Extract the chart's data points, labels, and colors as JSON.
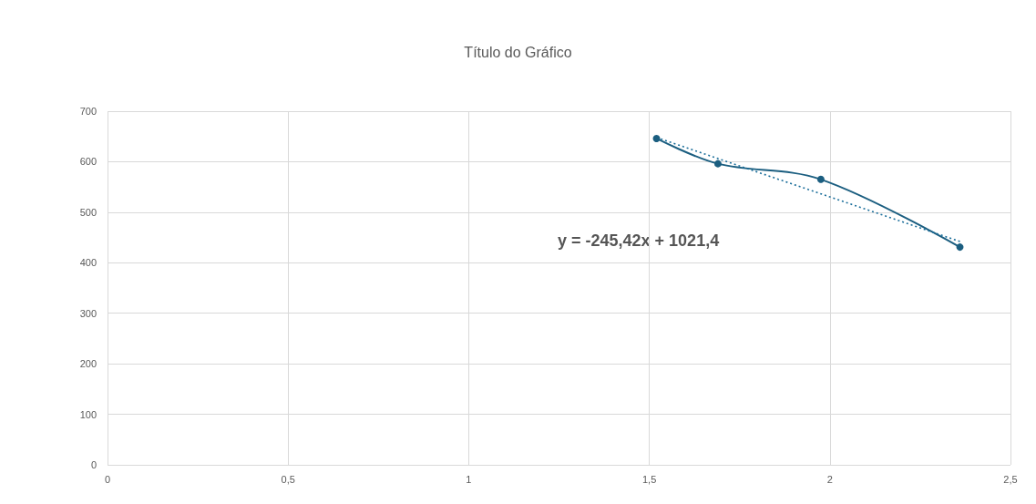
{
  "chart_data": {
    "type": "line",
    "title": "Título do Gráfico",
    "series": [
      {
        "color": "#1b5e80",
        "x": [
          1.52,
          1.69,
          1.975,
          2.36
        ],
        "values": [
          646,
          596,
          565,
          431
        ],
        "marker": "circle",
        "line_style": "solid"
      },
      {
        "color": "#1b6e9a",
        "x": [
          1.52,
          2.36
        ],
        "values": [
          648,
          442
        ],
        "marker": "none",
        "line_style": "dotted"
      }
    ],
    "xlim": [
      0,
      2.5
    ],
    "xticks": [
      0,
      {
        "value": 0.5,
        "label": "0,5"
      },
      1,
      {
        "value": 1.5,
        "label": "1,5"
      },
      2,
      {
        "value": 2.5,
        "label": "2,5"
      }
    ],
    "ylim": [
      0,
      700
    ],
    "yticks": [
      0,
      100,
      200,
      300,
      400,
      500,
      600,
      700
    ],
    "grid": true,
    "annotations": [
      "y = -245,42x + 1021,4"
    ]
  }
}
